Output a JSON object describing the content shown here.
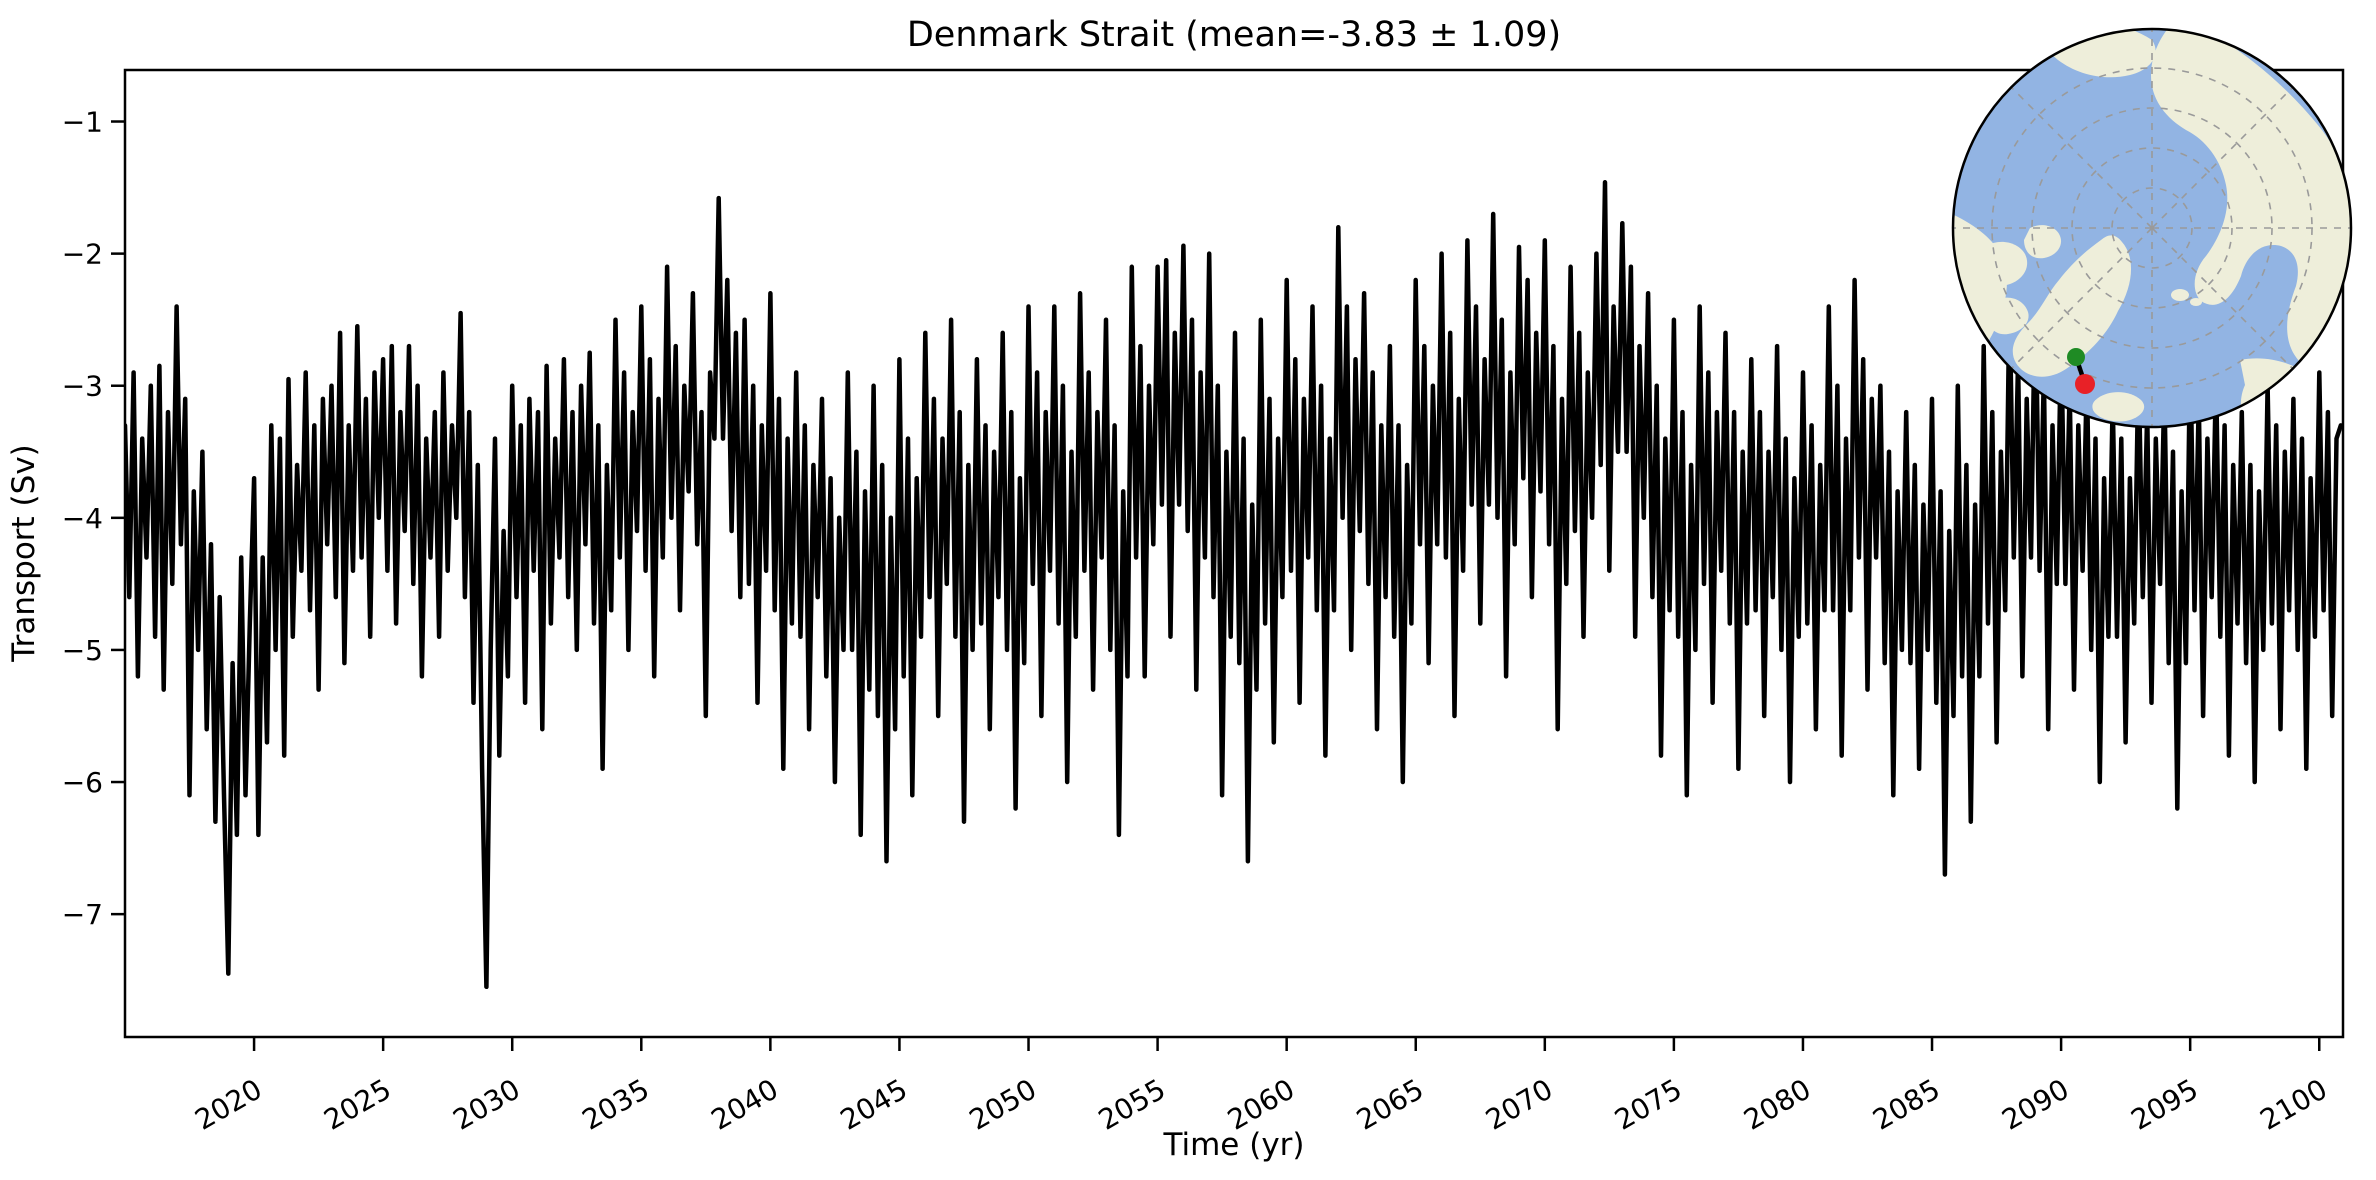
{
  "title": "Denmark Strait (mean=-3.83 ± 1.09)",
  "chart_data": {
    "type": "line",
    "title": "Denmark Strait (mean=-3.83 ± 1.09)",
    "xlabel": "Time (yr)",
    "ylabel": "Transport (Sv)",
    "mean": -3.83,
    "std": 1.09,
    "x_start_year": 2015,
    "points_per_year": 6,
    "xlim": [
      2015,
      2100.92
    ],
    "ylim": [
      -7.93,
      -0.61
    ],
    "x_tick_values": [
      2020,
      2025,
      2030,
      2035,
      2040,
      2045,
      2050,
      2055,
      2060,
      2065,
      2070,
      2075,
      2080,
      2085,
      2090,
      2095,
      2100
    ],
    "x_tick_labels": [
      "2020",
      "2025",
      "2030",
      "2035",
      "2040",
      "2045",
      "2050",
      "2055",
      "2060",
      "2065",
      "2070",
      "2075",
      "2080",
      "2085",
      "2090",
      "2095",
      "2100"
    ],
    "y_tick_values": [
      -1,
      -2,
      -3,
      -4,
      -5,
      -6,
      -7
    ],
    "y_tick_labels": [
      "−1",
      "−2",
      "−3",
      "−4",
      "−5",
      "−6",
      "−7"
    ],
    "line_color": "#000000",
    "line_width": 4.5,
    "grid": false,
    "legend": "none",
    "values": [
      -3.3,
      -4.6,
      -2.9,
      -5.2,
      -3.4,
      -4.3,
      -3.0,
      -4.9,
      -2.85,
      -5.3,
      -3.2,
      -4.5,
      -2.4,
      -4.2,
      -3.1,
      -6.1,
      -3.8,
      -5.0,
      -3.5,
      -5.6,
      -4.2,
      -6.3,
      -4.6,
      -6.1,
      -7.45,
      -5.1,
      -6.4,
      -4.3,
      -6.1,
      -4.8,
      -3.7,
      -6.4,
      -4.3,
      -5.7,
      -3.3,
      -5.0,
      -3.4,
      -5.8,
      -2.95,
      -4.9,
      -3.6,
      -4.4,
      -2.9,
      -4.7,
      -3.3,
      -5.3,
      -3.1,
      -4.2,
      -3.0,
      -4.6,
      -2.6,
      -5.1,
      -3.3,
      -4.4,
      -2.55,
      -4.3,
      -3.1,
      -4.9,
      -2.9,
      -4.0,
      -2.8,
      -4.4,
      -2.7,
      -4.8,
      -3.2,
      -4.1,
      -2.7,
      -4.5,
      -3.0,
      -5.2,
      -3.4,
      -4.3,
      -3.2,
      -4.9,
      -2.9,
      -4.4,
      -3.3,
      -4.0,
      -2.45,
      -4.6,
      -3.2,
      -5.4,
      -3.6,
      -5.9,
      -7.55,
      -5.0,
      -3.4,
      -5.8,
      -4.1,
      -5.2,
      -3.0,
      -4.6,
      -3.3,
      -5.4,
      -3.1,
      -4.4,
      -3.2,
      -5.6,
      -2.85,
      -4.8,
      -3.4,
      -4.3,
      -2.8,
      -4.6,
      -3.2,
      -5.0,
      -3.0,
      -4.2,
      -2.75,
      -4.8,
      -3.3,
      -5.9,
      -3.6,
      -4.7,
      -2.5,
      -4.3,
      -2.9,
      -5.0,
      -3.2,
      -4.1,
      -2.4,
      -4.4,
      -2.8,
      -5.2,
      -3.1,
      -4.3,
      -2.1,
      -4.0,
      -2.7,
      -4.7,
      -3.0,
      -3.8,
      -2.3,
      -4.2,
      -3.2,
      -5.5,
      -2.9,
      -3.4,
      -1.58,
      -3.4,
      -2.2,
      -4.1,
      -2.6,
      -4.6,
      -2.5,
      -4.5,
      -3.0,
      -5.4,
      -3.3,
      -4.4,
      -2.3,
      -4.7,
      -3.1,
      -5.9,
      -3.4,
      -4.8,
      -2.9,
      -4.9,
      -3.3,
      -5.6,
      -3.6,
      -4.6,
      -3.1,
      -5.2,
      -3.7,
      -6.0,
      -4.0,
      -5.0,
      -2.9,
      -5.0,
      -3.5,
      -6.4,
      -3.8,
      -5.3,
      -3.0,
      -5.5,
      -3.6,
      -6.6,
      -4.0,
      -5.6,
      -2.8,
      -5.2,
      -3.4,
      -6.1,
      -3.7,
      -4.9,
      -2.6,
      -4.6,
      -3.1,
      -5.5,
      -3.4,
      -4.5,
      -2.5,
      -4.9,
      -3.2,
      -6.3,
      -3.6,
      -5.0,
      -2.8,
      -4.8,
      -3.3,
      -5.6,
      -3.5,
      -4.6,
      -2.6,
      -5.0,
      -3.2,
      -6.2,
      -3.7,
      -5.1,
      -2.4,
      -4.5,
      -2.9,
      -5.5,
      -3.2,
      -4.4,
      -2.4,
      -4.8,
      -3.0,
      -6.0,
      -3.5,
      -4.9,
      -2.3,
      -4.4,
      -2.9,
      -5.3,
      -3.2,
      -4.3,
      -2.5,
      -5.0,
      -3.3,
      -6.4,
      -3.8,
      -5.2,
      -2.1,
      -4.3,
      -2.7,
      -5.2,
      -3.0,
      -4.2,
      -2.1,
      -3.9,
      -2.05,
      -4.9,
      -2.6,
      -3.9,
      -1.94,
      -4.1,
      -2.5,
      -5.3,
      -2.9,
      -4.3,
      -2.0,
      -4.6,
      -3.0,
      -6.1,
      -3.5,
      -4.9,
      -2.6,
      -5.1,
      -3.4,
      -6.6,
      -3.9,
      -5.3,
      -2.5,
      -4.8,
      -3.1,
      -5.7,
      -3.4,
      -4.6,
      -2.2,
      -4.4,
      -2.8,
      -5.4,
      -3.1,
      -4.3,
      -2.4,
      -4.7,
      -3.0,
      -5.8,
      -3.4,
      -4.7,
      -1.8,
      -4.0,
      -2.4,
      -5.0,
      -2.8,
      -4.1,
      -2.3,
      -4.5,
      -2.9,
      -5.6,
      -3.3,
      -4.6,
      -2.7,
      -4.9,
      -3.3,
      -6.0,
      -3.6,
      -4.8,
      -2.2,
      -4.2,
      -2.7,
      -5.1,
      -3.0,
      -4.2,
      -2.0,
      -4.3,
      -2.6,
      -5.5,
      -3.1,
      -4.4,
      -1.9,
      -3.9,
      -2.4,
      -4.8,
      -2.8,
      -3.9,
      -1.7,
      -4.0,
      -2.5,
      -5.2,
      -2.9,
      -4.2,
      -1.95,
      -3.7,
      -2.2,
      -4.6,
      -2.6,
      -3.8,
      -1.9,
      -4.2,
      -2.7,
      -5.6,
      -3.1,
      -4.5,
      -2.1,
      -4.1,
      -2.6,
      -4.9,
      -2.9,
      -4.0,
      -2.0,
      -3.6,
      -1.46,
      -4.4,
      -2.4,
      -3.5,
      -1.77,
      -3.5,
      -2.1,
      -4.9,
      -2.7,
      -4.0,
      -2.3,
      -4.6,
      -3.0,
      -5.8,
      -3.4,
      -4.7,
      -2.5,
      -4.9,
      -3.2,
      -6.1,
      -3.6,
      -5.0,
      -2.4,
      -4.5,
      -2.9,
      -5.4,
      -3.2,
      -4.4,
      -2.6,
      -4.8,
      -3.2,
      -5.9,
      -3.5,
      -4.8,
      -2.8,
      -4.7,
      -3.2,
      -5.5,
      -3.5,
      -4.6,
      -2.7,
      -5.0,
      -3.4,
      -6.0,
      -3.7,
      -4.9,
      -2.9,
      -4.8,
      -3.3,
      -5.6,
      -3.6,
      -4.7,
      -2.4,
      -4.7,
      -3.0,
      -5.8,
      -3.4,
      -4.7,
      -2.2,
      -4.3,
      -2.8,
      -5.3,
      -3.1,
      -4.3,
      -3.0,
      -5.1,
      -3.5,
      -6.1,
      -3.8,
      -5.0,
      -3.2,
      -5.1,
      -3.6,
      -5.9,
      -3.9,
      -5.0,
      -3.1,
      -5.4,
      -3.8,
      -6.7,
      -4.1,
      -5.5,
      -3.0,
      -5.2,
      -3.6,
      -6.3,
      -3.9,
      -5.2,
      -2.7,
      -4.8,
      -3.2,
      -5.7,
      -3.5,
      -4.7,
      -2.3,
      -4.3,
      -2.8,
      -5.2,
      -3.1,
      -4.3,
      -2.2,
      -4.4,
      -2.9,
      -5.6,
      -3.3,
      -4.5,
      -2.6,
      -4.5,
      -3.0,
      -5.3,
      -3.3,
      -4.4,
      -2.9,
      -5.0,
      -3.4,
      -6.0,
      -3.7,
      -4.9,
      -3.1,
      -4.9,
      -3.4,
      -5.7,
      -3.7,
      -4.8,
      -2.8,
      -4.6,
      -3.2,
      -5.4,
      -3.4,
      -4.5,
      -3.0,
      -5.1,
      -3.5,
      -6.2,
      -3.8,
      -5.1,
      -2.7,
      -4.7,
      -3.1,
      -5.5,
      -3.4,
      -4.6,
      -2.9,
      -4.9,
      -3.3,
      -5.8,
      -3.6,
      -4.8,
      -3.2,
      -5.1,
      -3.6,
      -6.0,
      -3.8,
      -5.0,
      -3.0,
      -4.8,
      -3.3,
      -5.6,
      -3.5,
      -4.7,
      -3.1,
      -5.0,
      -3.4,
      -5.9,
      -3.7,
      -4.9,
      -2.9,
      -4.7,
      -3.2,
      -5.5,
      -3.4,
      -3.3
    ]
  },
  "inset_map": {
    "ocean_color": "#92b4e3",
    "land_color": "#eeeeda",
    "graticule_color": "#9a9a9a",
    "border_color": "#000000",
    "section_line_color": "#000000",
    "start_marker_color": "#1f8b24",
    "end_marker_color": "#e82127"
  }
}
